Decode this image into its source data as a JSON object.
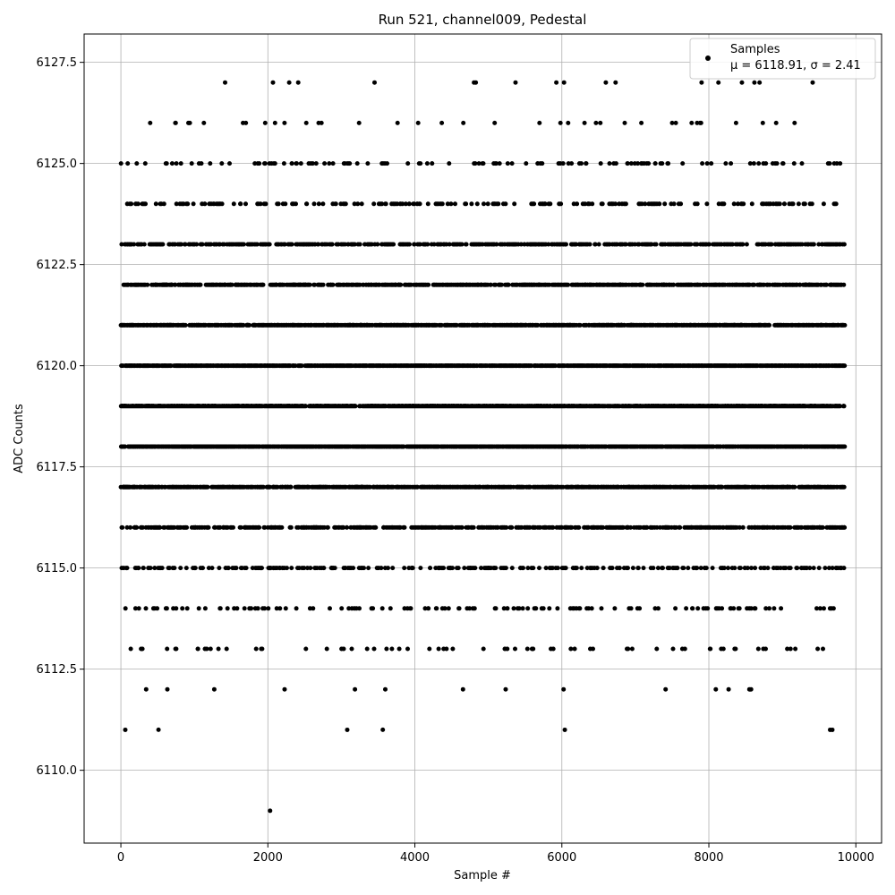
{
  "chart_data": {
    "type": "scatter",
    "title": "Run 521, channel009, Pedestal",
    "xlabel": "Sample #",
    "ylabel": "ADC Counts",
    "xlim": [
      -500,
      10350
    ],
    "ylim": [
      6108.2,
      6128.2
    ],
    "xticks": [
      0,
      2000,
      4000,
      6000,
      8000,
      10000
    ],
    "xtick_labels": [
      "0",
      "2000",
      "4000",
      "6000",
      "8000",
      "10000"
    ],
    "yticks": [
      6110.0,
      6112.5,
      6115.0,
      6117.5,
      6120.0,
      6122.5,
      6125.0,
      6127.5
    ],
    "ytick_labels": [
      "6110.0",
      "6112.5",
      "6115.0",
      "6117.5",
      "6120.0",
      "6122.5",
      "6125.0",
      "6127.5"
    ],
    "grid": true,
    "legend_position": "top-right",
    "marker_color": "#000000",
    "series": [
      {
        "name": "Samples",
        "stats_label": "μ = 6118.91, σ = 2.41",
        "x_range": [
          0,
          9850
        ],
        "level_weights": [
          {
            "y": 6109,
            "w": 0.0001
          },
          {
            "y": 6111,
            "w": 0.0005
          },
          {
            "y": 6112,
            "w": 0.0015
          },
          {
            "y": 6113,
            "w": 0.006
          },
          {
            "y": 6114,
            "w": 0.014
          },
          {
            "y": 6115,
            "w": 0.03
          },
          {
            "y": 6116,
            "w": 0.06
          },
          {
            "y": 6117,
            "w": 0.11
          },
          {
            "y": 6118,
            "w": 0.15
          },
          {
            "y": 6119,
            "w": 0.17
          },
          {
            "y": 6120,
            "w": 0.15
          },
          {
            "y": 6121,
            "w": 0.11
          },
          {
            "y": 6122,
            "w": 0.08
          },
          {
            "y": 6123,
            "w": 0.055
          },
          {
            "y": 6124,
            "w": 0.02
          },
          {
            "y": 6125,
            "w": 0.012
          },
          {
            "y": 6126,
            "w": 0.004
          },
          {
            "y": 6127,
            "w": 0.0008
          }
        ],
        "notable_points": [
          {
            "x": 2030,
            "y": 6109
          },
          {
            "x": 2290,
            "y": 6127
          },
          {
            "x": 60,
            "y": 6111
          },
          {
            "x": 3080,
            "y": 6111
          },
          {
            "x": 6040,
            "y": 6111
          },
          {
            "x": 9650,
            "y": 6111
          },
          {
            "x": 9680,
            "y": 6111
          },
          {
            "x": 8620,
            "y": 6127
          },
          {
            "x": 8690,
            "y": 6127
          },
          {
            "x": 8130,
            "y": 6127
          },
          {
            "x": 8450,
            "y": 6127
          }
        ]
      }
    ]
  }
}
